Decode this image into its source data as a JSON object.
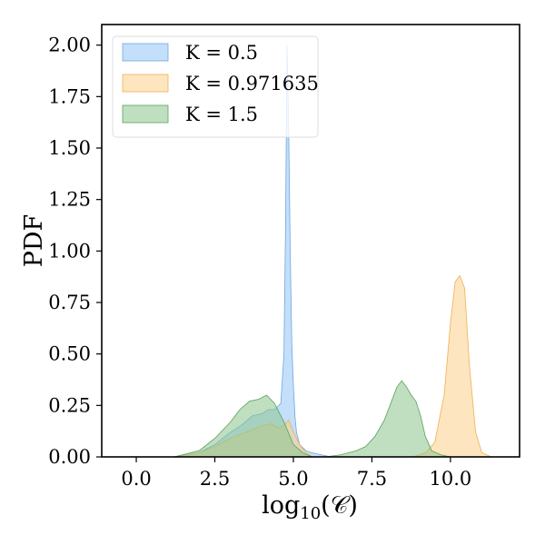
{
  "chart_data": {
    "type": "area",
    "xlabel_main": "log",
    "xlabel_sub": "10",
    "xlabel_arg": "(𝒞)",
    "ylabel": "PDF",
    "xlim": [
      -1.1,
      12.2
    ],
    "ylim": [
      0,
      2.1
    ],
    "x_ticks": [
      0,
      2.5,
      5,
      7.5,
      10
    ],
    "x_tick_labels": [
      "0.0",
      "2.5",
      "5.0",
      "7.5",
      "10.0"
    ],
    "y_ticks": [
      0,
      0.25,
      0.5,
      0.75,
      1.0,
      1.25,
      1.5,
      1.75,
      2.0
    ],
    "y_tick_labels": [
      "0.00",
      "0.25",
      "0.50",
      "0.75",
      "1.00",
      "1.25",
      "1.50",
      "1.75",
      "2.00"
    ],
    "grid": false,
    "legend_position": "top-left",
    "series": [
      {
        "name": "K = 0.5",
        "fill": "#92c5f5",
        "stroke": "#6fa6e0",
        "x": [
          1.2,
          2.0,
          2.5,
          3.0,
          3.4,
          3.7,
          4.0,
          4.2,
          4.4,
          4.6,
          4.7,
          4.75,
          4.8,
          4.85,
          4.9,
          4.95,
          5.0,
          5.05,
          5.1,
          5.2,
          5.4,
          5.6,
          5.9,
          6.2
        ],
        "y": [
          0.0,
          0.02,
          0.06,
          0.12,
          0.16,
          0.2,
          0.21,
          0.23,
          0.23,
          0.26,
          0.5,
          1.1,
          2.0,
          1.6,
          1.0,
          0.55,
          0.35,
          0.2,
          0.12,
          0.06,
          0.03,
          0.02,
          0.01,
          0.0
        ]
      },
      {
        "name": "K = 0.971635",
        "fill": "#fcd08a",
        "stroke": "#f0b050",
        "x": [
          1.2,
          2.0,
          2.5,
          3.0,
          3.5,
          4.0,
          4.3,
          4.5,
          4.7,
          4.85,
          5.0,
          5.2,
          5.4,
          5.6,
          8.8,
          9.2,
          9.5,
          9.8,
          10.0,
          10.15,
          10.3,
          10.45,
          10.6,
          10.8,
          11.0,
          11.3
        ],
        "y": [
          0.0,
          0.02,
          0.05,
          0.09,
          0.12,
          0.15,
          0.16,
          0.14,
          0.15,
          0.18,
          0.12,
          0.06,
          0.02,
          0.0,
          0.0,
          0.02,
          0.07,
          0.3,
          0.65,
          0.85,
          0.88,
          0.82,
          0.45,
          0.12,
          0.02,
          0.0
        ]
      },
      {
        "name": "K = 1.5",
        "fill": "#8cc48c",
        "stroke": "#5ba05b",
        "x": [
          1.2,
          2.0,
          2.5,
          3.0,
          3.3,
          3.6,
          3.9,
          4.15,
          4.4,
          4.7,
          5.0,
          5.3,
          5.6,
          6.0,
          6.5,
          7.0,
          7.3,
          7.6,
          7.9,
          8.1,
          8.3,
          8.45,
          8.6,
          8.75,
          8.9,
          9.05,
          9.2,
          9.4,
          9.7,
          10.0
        ],
        "y": [
          0.0,
          0.03,
          0.09,
          0.17,
          0.23,
          0.27,
          0.28,
          0.3,
          0.26,
          0.17,
          0.06,
          0.02,
          0.0,
          0.0,
          0.01,
          0.03,
          0.05,
          0.1,
          0.18,
          0.26,
          0.34,
          0.37,
          0.34,
          0.3,
          0.27,
          0.2,
          0.1,
          0.03,
          0.01,
          0.0
        ]
      }
    ]
  }
}
